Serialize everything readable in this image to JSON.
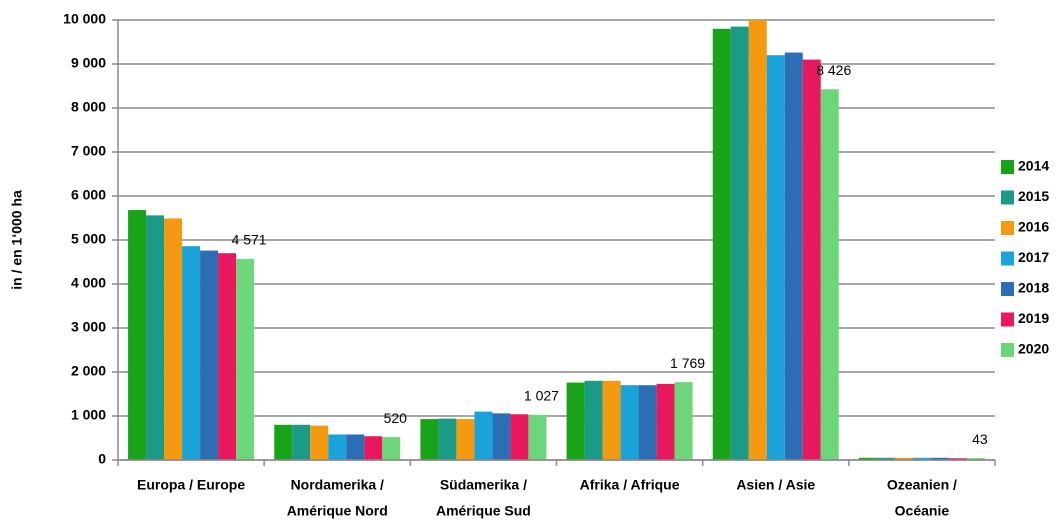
{
  "chart_data": {
    "type": "bar",
    "y_label": "in / en 1‘000 ha",
    "categories": [
      [
        "Europa / Europe"
      ],
      [
        "Nordamerika /",
        "Amérique Nord"
      ],
      [
        "Südamerika /",
        "Amérique Sud"
      ],
      [
        "Afrika / Afrique"
      ],
      [
        "Asien / Asie"
      ],
      [
        "Ozeanien /",
        "Océanie"
      ]
    ],
    "series": [
      {
        "name": "2014",
        "color": "#19a319",
        "values": [
          5680,
          800,
          930,
          1760,
          9800,
          50
        ]
      },
      {
        "name": "2015",
        "color": "#1b9a86",
        "values": [
          5560,
          800,
          940,
          1800,
          9850,
          50
        ]
      },
      {
        "name": "2016",
        "color": "#f49a10",
        "values": [
          5490,
          780,
          930,
          1800,
          10000,
          50
        ]
      },
      {
        "name": "2017",
        "color": "#1aa3d8",
        "values": [
          4860,
          580,
          1100,
          1700,
          9200,
          50
        ]
      },
      {
        "name": "2018",
        "color": "#2d6db3",
        "values": [
          4760,
          580,
          1060,
          1700,
          9260,
          50
        ]
      },
      {
        "name": "2019",
        "color": "#e8185e",
        "values": [
          4700,
          540,
          1040,
          1730,
          9100,
          40
        ]
      },
      {
        "name": "2020",
        "color": "#6dd57a",
        "values": [
          4571,
          520,
          1027,
          1769,
          8426,
          43
        ],
        "value_labels": [
          "4 571",
          "520",
          "1 027",
          "1 769",
          "8 426",
          "43"
        ]
      }
    ],
    "ylim": [
      0,
      10000
    ],
    "yticks": [
      0,
      {
        "value": 1000,
        "label": "1 000"
      },
      {
        "value": 2000,
        "label": "2 000"
      },
      {
        "value": 3000,
        "label": "3 000"
      },
      {
        "value": 4000,
        "label": "4 000"
      },
      {
        "value": 5000,
        "label": "5 000"
      },
      {
        "value": 6000,
        "label": "6 000"
      },
      {
        "value": 7000,
        "label": "7 000"
      },
      {
        "value": 8000,
        "label": "8 000"
      },
      {
        "value": 9000,
        "label": "9 000"
      },
      {
        "value": 10000,
        "label": "10 000"
      }
    ],
    "grid": true,
    "legend": "right"
  }
}
